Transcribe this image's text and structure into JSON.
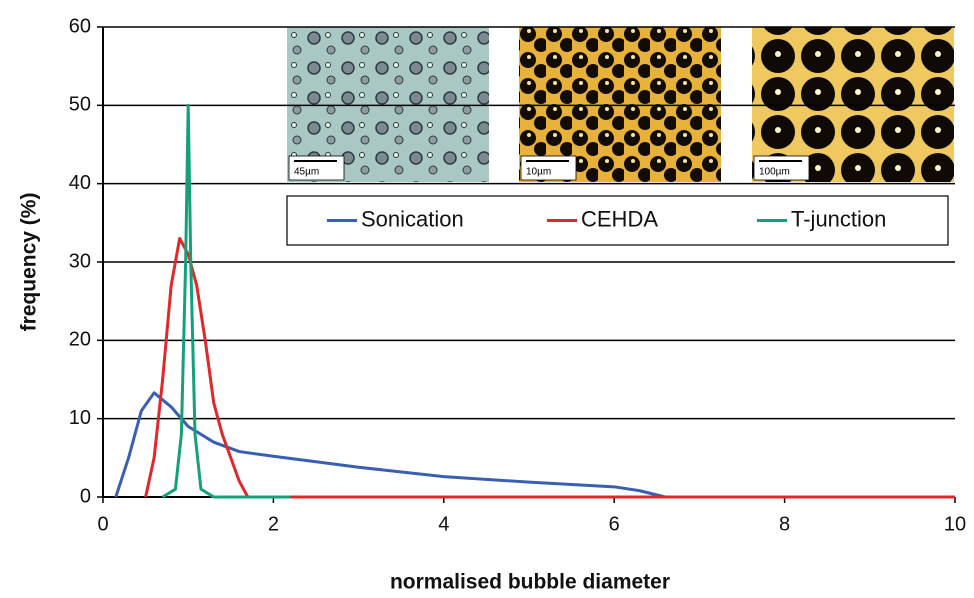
{
  "chart_data": {
    "type": "line",
    "xlabel": "normalised bubble diameter",
    "ylabel": "frequency (%)",
    "xlim": [
      0,
      10
    ],
    "xticks": [
      0,
      2,
      4,
      6,
      8,
      10
    ],
    "ylim": [
      0,
      60
    ],
    "yticks": [
      0,
      10,
      20,
      30,
      40,
      50,
      60
    ],
    "grid": true,
    "legend": "upper right",
    "series": [
      {
        "name": "Sonication",
        "color": "#3a5fb0",
        "x": [
          0.15,
          0.3,
          0.45,
          0.6,
          0.8,
          1.0,
          1.3,
          1.6,
          2.0,
          3.0,
          4.0,
          5.0,
          6.0,
          6.3,
          6.6,
          10
        ],
        "values": [
          0,
          5,
          11,
          13.3,
          11.5,
          9,
          7,
          5.8,
          5.2,
          3.8,
          2.6,
          1.9,
          1.3,
          0.8,
          0,
          0
        ]
      },
      {
        "name": "CEHDA",
        "color": "#e0282a",
        "x": [
          0.5,
          0.6,
          0.7,
          0.8,
          0.9,
          1.0,
          1.1,
          1.2,
          1.3,
          1.4,
          1.5,
          1.6,
          1.7,
          10
        ],
        "values": [
          0,
          5,
          15,
          27,
          33,
          31,
          27,
          20,
          12,
          8,
          5,
          2,
          0,
          0
        ]
      },
      {
        "name": "T-junction",
        "color": "#16a07a",
        "x": [
          0.7,
          0.85,
          0.92,
          0.97,
          1.0,
          1.03,
          1.08,
          1.15,
          1.3,
          2.2
        ],
        "values": [
          0,
          1,
          8,
          30,
          50,
          30,
          8,
          1,
          0,
          0
        ]
      }
    ],
    "insets": [
      {
        "scale_label": "45µm"
      },
      {
        "scale_label": "10µm"
      },
      {
        "scale_label": "100µm"
      }
    ]
  }
}
